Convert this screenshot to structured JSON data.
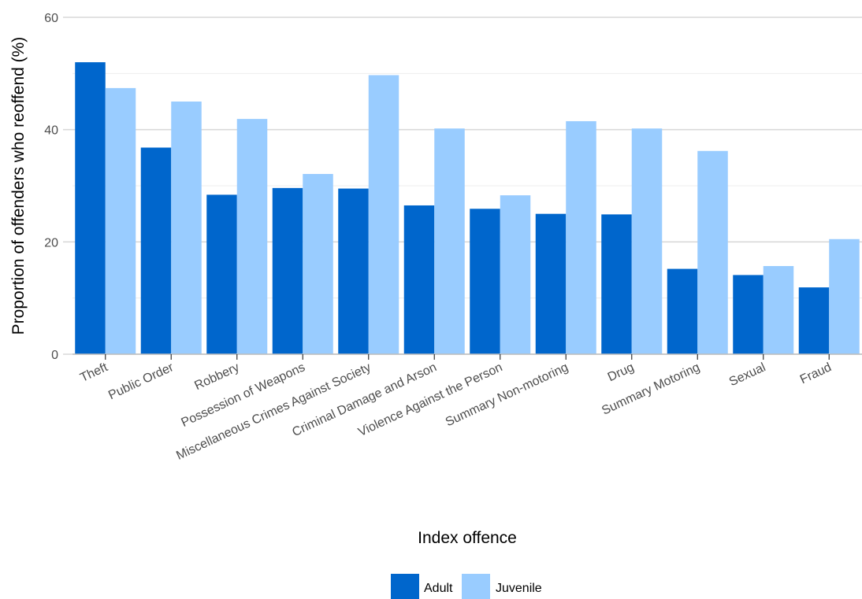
{
  "chart_data": {
    "type": "bar",
    "xlabel": "Index offence",
    "ylabel": "Proportion of offenders who reoffend (%)",
    "ylim": [
      0,
      60
    ],
    "yticks": [
      0,
      20,
      40,
      60
    ],
    "categories": [
      "Theft",
      "Public Order",
      "Robbery",
      "Possession of Weapons",
      "Miscellaneous Crimes Against Society",
      "Criminal Damage and Arson",
      "Violence Against the Person",
      "Summary Non-motoring",
      "Drug",
      "Summary Motoring",
      "Sexual",
      "Fraud"
    ],
    "series": [
      {
        "name": "Adult",
        "color": "#0066cc",
        "values": [
          52.0,
          36.8,
          28.4,
          29.6,
          29.5,
          26.5,
          25.9,
          25.0,
          24.9,
          15.2,
          14.1,
          11.9
        ]
      },
      {
        "name": "Juvenile",
        "color": "#99ccff",
        "values": [
          47.4,
          45.0,
          41.9,
          32.1,
          49.7,
          40.2,
          28.3,
          41.5,
          40.2,
          36.2,
          15.7,
          20.5
        ]
      }
    ],
    "legend_position": "bottom",
    "grid": true,
    "gridline_color": "#d9d9d9"
  }
}
